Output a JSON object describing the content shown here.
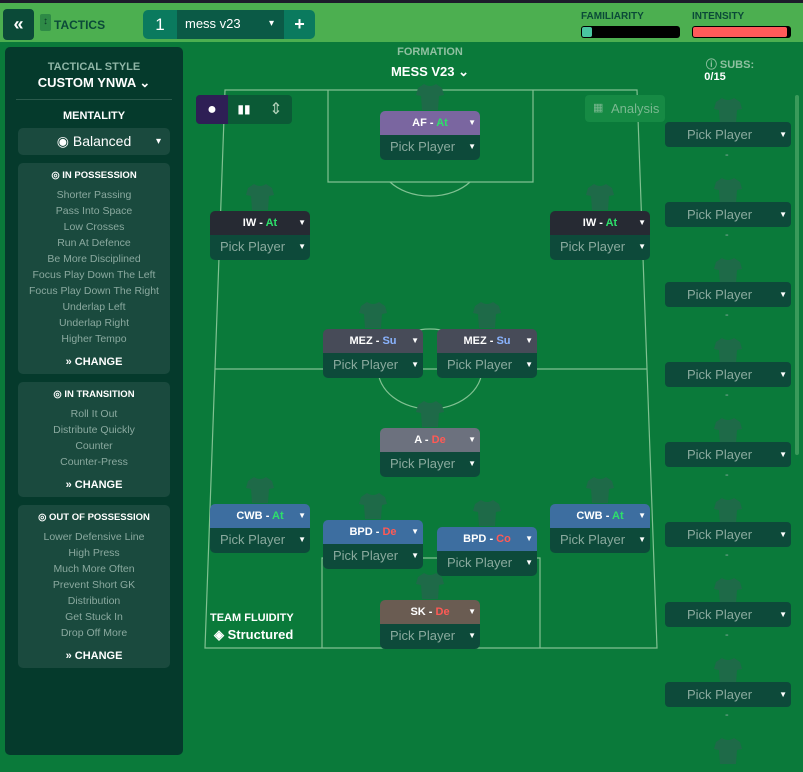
{
  "topbar": {
    "back_icon": "double-chevron-left",
    "tactics_label": "TACTICS",
    "tab_number": "1",
    "tab_name": "mess v23",
    "add_label": "+",
    "familiarity_label": "FAMILIARITY",
    "familiarity_level": 0.05,
    "intensity_label": "INTENSITY",
    "intensity_level": 0.97,
    "familiarity_color": "#49c6a0",
    "intensity_color": "#ff5a5a"
  },
  "left": {
    "style_label": "TACTICAL STYLE",
    "style_value": "CUSTOM YNWA",
    "mentality_label": "MENTALITY",
    "mentality_value": "Balanced",
    "sections": [
      {
        "title": "IN POSSESSION",
        "items": [
          "Shorter Passing",
          "Pass Into Space",
          "Low Crosses",
          "Run At Defence",
          "Be More Disciplined",
          "Focus Play Down The Left",
          "Focus Play Down The Right",
          "Underlap Left",
          "Underlap Right",
          "Higher Tempo"
        ],
        "change": "CHANGE"
      },
      {
        "title": "IN TRANSITION",
        "items": [
          "Roll It Out",
          "Distribute Quickly",
          "Counter",
          "Counter-Press"
        ],
        "change": "CHANGE"
      },
      {
        "title": "OUT OF POSSESSION",
        "items": [
          "Lower Defensive Line",
          "High Press",
          "Much More Often",
          "Prevent Short GK",
          "Distribution",
          "Get Stuck In",
          "Drop Off More"
        ],
        "change": "CHANGE"
      }
    ]
  },
  "formation": {
    "label": "FORMATION",
    "value": "MESS V23",
    "analysis": "Analysis",
    "fluidity_label": "TEAM FLUIDITY",
    "fluidity_value": "Structured"
  },
  "players": [
    {
      "role": "AF",
      "duty": "At",
      "pick": "Pick Player",
      "color": "#7a66a0"
    },
    {
      "role": "IW",
      "duty": "At",
      "pick": "Pick Player",
      "color": "#262a33"
    },
    {
      "role": "IW",
      "duty": "At",
      "pick": "Pick Player",
      "color": "#262a33"
    },
    {
      "role": "MEZ",
      "duty": "Su",
      "pick": "Pick Player",
      "color": "#474b58"
    },
    {
      "role": "MEZ",
      "duty": "Su",
      "pick": "Pick Player",
      "color": "#474b58"
    },
    {
      "role": "A",
      "duty": "De",
      "pick": "Pick Player",
      "color": "#6c717e"
    },
    {
      "role": "CWB",
      "duty": "At",
      "pick": "Pick Player",
      "color": "#3d6ea0"
    },
    {
      "role": "BPD",
      "duty": "De",
      "pick": "Pick Player",
      "color": "#3d6ea0"
    },
    {
      "role": "BPD",
      "duty": "Co",
      "pick": "Pick Player",
      "color": "#3d6ea0"
    },
    {
      "role": "CWB",
      "duty": "At",
      "pick": "Pick Player",
      "color": "#3d6ea0"
    },
    {
      "role": "SK",
      "duty": "De",
      "pick": "Pick Player",
      "color": "#6a5c52"
    }
  ],
  "subs": {
    "label": "SUBS:",
    "count": "0/15",
    "pick": "Pick Player",
    "dash": "-"
  }
}
